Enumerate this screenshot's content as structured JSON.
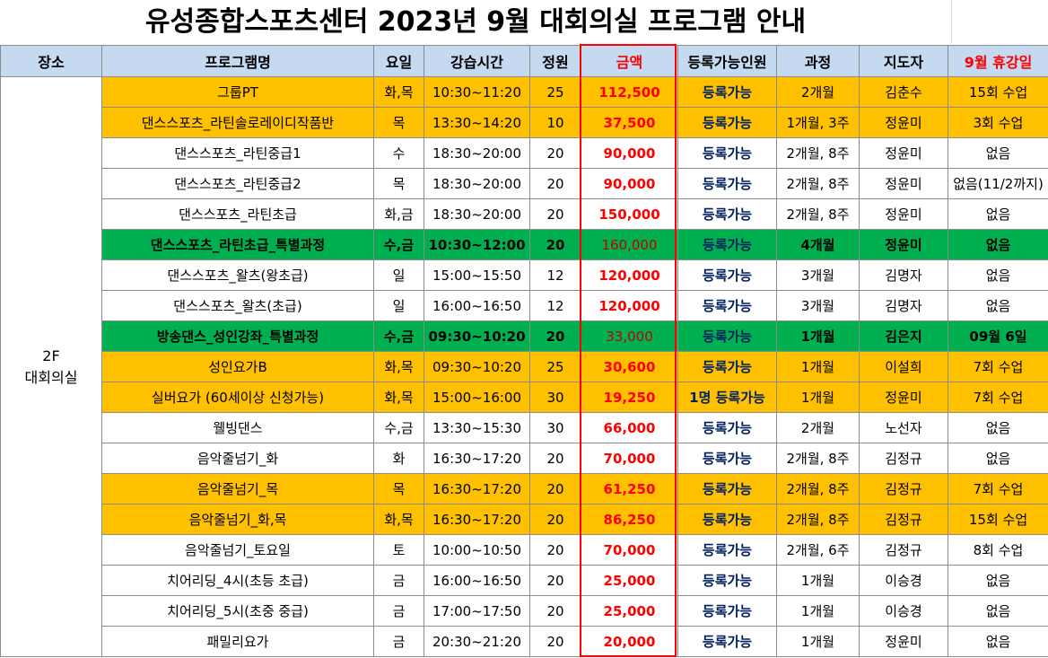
{
  "title": "유성종합스포츠센터 2023년 9월 대회의실 프로그램 안내",
  "headers": {
    "venue": "장소",
    "program": "프로그램명",
    "day": "요일",
    "time": "강습시간",
    "capacity": "정원",
    "price": "금액",
    "available": "등록가능인원",
    "course": "과정",
    "instructor": "지도자",
    "rest": "9월 휴강일"
  },
  "venue": {
    "floor": "2F",
    "room": "대회의실"
  },
  "colors": {
    "orange": "#ffc000",
    "green": "#00b050",
    "header": "#c5d9f1",
    "price": "#ff0000",
    "available": "#002060"
  },
  "rows": [
    {
      "program": "그룹PT",
      "day": "화,목",
      "time": "10:30~11:20",
      "capacity": "25",
      "price": "112,500",
      "available": "등록가능",
      "course": "2개월",
      "instructor": "김춘수",
      "rest": "15회 수업",
      "highlight": "orange"
    },
    {
      "program": "댄스스포츠_라틴솔로레이디작품반",
      "day": "목",
      "time": "13:30~14:20",
      "capacity": "10",
      "price": "37,500",
      "available": "등록가능",
      "course": "1개월, 3주",
      "instructor": "정윤미",
      "rest": "3회 수업",
      "highlight": "orange"
    },
    {
      "program": "댄스스포츠_라틴중급1",
      "day": "수",
      "time": "18:30~20:00",
      "capacity": "20",
      "price": "90,000",
      "available": "등록가능",
      "course": "2개월, 8주",
      "instructor": "정윤미",
      "rest": "없음",
      "highlight": "none"
    },
    {
      "program": "댄스스포츠_라틴중급2",
      "day": "목",
      "time": "18:30~20:00",
      "capacity": "20",
      "price": "90,000",
      "available": "등록가능",
      "course": "2개월, 8주",
      "instructor": "정윤미",
      "rest": "없음(11/2까지)",
      "highlight": "none"
    },
    {
      "program": "댄스스포츠_라틴초급",
      "day": "화,금",
      "time": "18:30~20:00",
      "capacity": "20",
      "price": "150,000",
      "available": "등록가능",
      "course": "2개월, 8주",
      "instructor": "정윤미",
      "rest": "없음",
      "highlight": "none"
    },
    {
      "program": "댄스스포츠_라틴초급_특별과정",
      "day": "수,금",
      "time": "10:30~12:00",
      "capacity": "20",
      "price": "160,000",
      "available": "등록가능",
      "course": "4개월",
      "instructor": "정윤미",
      "rest": "없음",
      "highlight": "green"
    },
    {
      "program": "댄스스포츠_왈츠(왕초급)",
      "day": "일",
      "time": "15:00~15:50",
      "capacity": "12",
      "price": "120,000",
      "available": "등록가능",
      "course": "3개월",
      "instructor": "김명자",
      "rest": "없음",
      "highlight": "none"
    },
    {
      "program": "댄스스포츠_왈츠(초급)",
      "day": "일",
      "time": "16:00~16:50",
      "capacity": "12",
      "price": "120,000",
      "available": "등록가능",
      "course": "3개월",
      "instructor": "김명자",
      "rest": "없음",
      "highlight": "none"
    },
    {
      "program": "방송댄스_성인강좌_특별과정",
      "day": "수,금",
      "time": "09:30~10:20",
      "capacity": "20",
      "price": "33,000",
      "available": "등록가능",
      "course": "1개월",
      "instructor": "김은지",
      "rest": "09월 6일",
      "highlight": "green"
    },
    {
      "program": "성인요가B",
      "day": "화,목",
      "time": "09:30~10:20",
      "capacity": "25",
      "price": "30,600",
      "available": "등록가능",
      "course": "1개월",
      "instructor": "이설희",
      "rest": "7회 수업",
      "highlight": "orange"
    },
    {
      "program": "실버요가 (60세이상 신청가능)",
      "day": "화,목",
      "time": "15:00~16:00",
      "capacity": "30",
      "price": "19,250",
      "available": "1명 등록가능",
      "course": "1개월",
      "instructor": "정윤미",
      "rest": "7회 수업",
      "highlight": "orange"
    },
    {
      "program": "웰빙댄스",
      "day": "수,금",
      "time": "13:30~15:30",
      "capacity": "30",
      "price": "66,000",
      "available": "등록가능",
      "course": "2개월",
      "instructor": "노선자",
      "rest": "없음",
      "highlight": "none"
    },
    {
      "program": "음악줄넘기_화",
      "day": "화",
      "time": "16:30~17:20",
      "capacity": "20",
      "price": "70,000",
      "available": "등록가능",
      "course": "2개월, 8주",
      "instructor": "김정규",
      "rest": "없음",
      "highlight": "none"
    },
    {
      "program": "음악줄넘기_목",
      "day": "목",
      "time": "16:30~17:20",
      "capacity": "20",
      "price": "61,250",
      "available": "등록가능",
      "course": "2개월, 8주",
      "instructor": "김정규",
      "rest": "7회 수업",
      "highlight": "orange"
    },
    {
      "program": "음악줄넘기_화,목",
      "day": "화,목",
      "time": "16:30~17:20",
      "capacity": "20",
      "price": "86,250",
      "available": "등록가능",
      "course": "2개월, 8주",
      "instructor": "김정규",
      "rest": "15회 수업",
      "highlight": "orange"
    },
    {
      "program": "음악줄넘기_토요일",
      "day": "토",
      "time": "10:00~10:50",
      "capacity": "20",
      "price": "70,000",
      "available": "등록가능",
      "course": "2개월, 6주",
      "instructor": "김정규",
      "rest": "8회 수업",
      "highlight": "none"
    },
    {
      "program": "치어리딩_4시(초등 초급)",
      "day": "금",
      "time": "16:00~16:50",
      "capacity": "20",
      "price": "25,000",
      "available": "등록가능",
      "course": "1개월",
      "instructor": "이승경",
      "rest": "없음",
      "highlight": "none"
    },
    {
      "program": "치어리딩_5시(초중 중급)",
      "day": "금",
      "time": "17:00~17:50",
      "capacity": "20",
      "price": "25,000",
      "available": "등록가능",
      "course": "1개월",
      "instructor": "이승경",
      "rest": "없음",
      "highlight": "none"
    },
    {
      "program": "패밀리요가",
      "day": "금",
      "time": "20:30~21:20",
      "capacity": "20",
      "price": "20,000",
      "available": "등록가능",
      "course": "1개월",
      "instructor": "정윤미",
      "rest": "없음",
      "highlight": "none"
    }
  ]
}
